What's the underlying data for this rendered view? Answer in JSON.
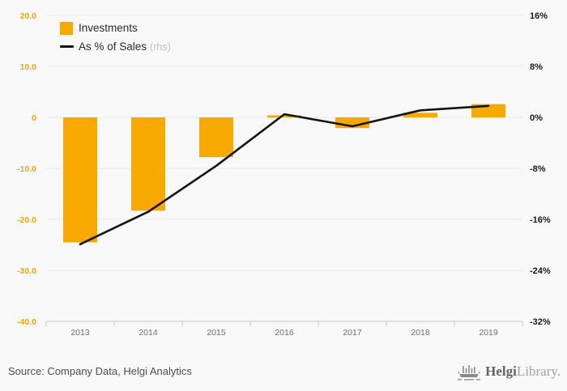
{
  "legend": {
    "bar_label": "Investments",
    "line_label": "As % of Sales",
    "line_label_suffix": "(rhs)"
  },
  "source_note": "Source: Company Data, Helgi Analytics",
  "logo": {
    "name_bold": "Helgi",
    "name_light": "Library."
  },
  "colors": {
    "bar": "#f8a900",
    "line": "#141414",
    "left_axis_labels": "#f2a60d",
    "right_axis_labels": "#1a1a1a",
    "category_labels": "#6f6f6f",
    "gridline": "#e9e9e9",
    "baseline": "#c9cfda",
    "background": "#f8f8f8"
  },
  "chart_data": {
    "type": "bar",
    "subtype": "bar-and-line-combo",
    "title": "",
    "categories": [
      "2013",
      "2014",
      "2015",
      "2016",
      "2017",
      "2018",
      "2019"
    ],
    "series": [
      {
        "name": "Investments",
        "type": "bar",
        "axis": "left",
        "values": [
          -24.5,
          -18.3,
          -7.8,
          0.4,
          -2.1,
          0.9,
          2.6
        ]
      },
      {
        "name": "As % of Sales (rhs)",
        "type": "line",
        "axis": "right",
        "values": [
          -19.9,
          -14.8,
          -7.6,
          0.5,
          -1.4,
          1.1,
          1.8
        ]
      }
    ],
    "left_axis": {
      "ticks": [
        "20.0",
        "10.0",
        "0",
        "-10.0",
        "-20.0",
        "-30.0",
        "-40.0"
      ],
      "ylim": [
        -40,
        20
      ]
    },
    "right_axis": {
      "ticks": [
        "16%",
        "8%",
        "0%",
        "-8%",
        "-16%",
        "-24%",
        "-32%"
      ],
      "ylim": [
        -32,
        16
      ]
    },
    "grid": true,
    "legend_position": "top-left"
  }
}
